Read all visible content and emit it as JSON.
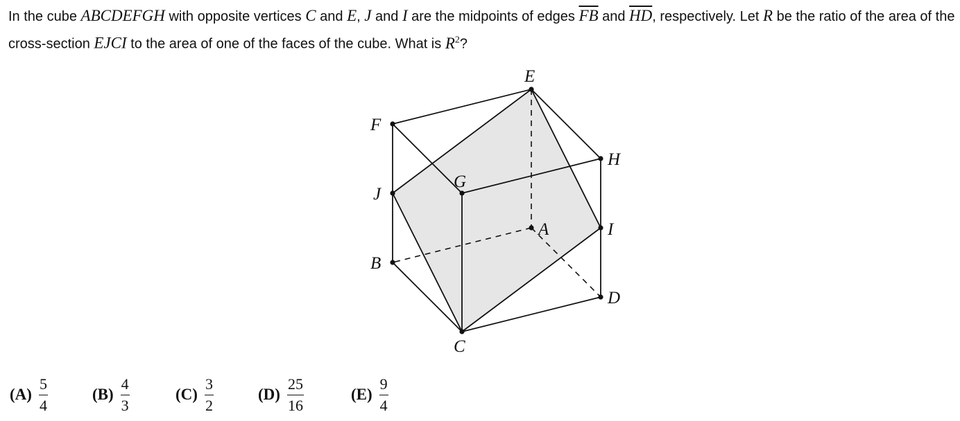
{
  "problem": {
    "t1": "In the cube ",
    "cube": "ABCDEFGH",
    "t2": " with opposite vertices ",
    "v1": "C",
    "t3": " and ",
    "v2": "E",
    "t4": ", ",
    "p1": "J",
    "t5": " and ",
    "p2": "I",
    "t6": " are the midpoints of edges ",
    "e1": "FB",
    "t7": " and ",
    "e2": "HD",
    "t8": ", respectively. Let ",
    "r1": "R",
    "t9": " be the ratio of the area of the cross-section ",
    "sec": "EJCI",
    "t10": " to the area of one of the faces of the cube. What is ",
    "r2": "R",
    "exp": "2",
    "t11": "?"
  },
  "figure": {
    "labels": {
      "E": "E",
      "F": "F",
      "H": "H",
      "G": "G",
      "J": "J",
      "A": "A",
      "I": "I",
      "B": "B",
      "D": "D",
      "C": "C"
    },
    "shade_color": "#e6e6e6",
    "line_color": "#111111"
  },
  "choices": [
    {
      "letter": "(A)",
      "num": "5",
      "den": "4"
    },
    {
      "letter": "(B)",
      "num": "4",
      "den": "3"
    },
    {
      "letter": "(C)",
      "num": "3",
      "den": "2"
    },
    {
      "letter": "(D)",
      "num": "25",
      "den": "16"
    },
    {
      "letter": "(E)",
      "num": "9",
      "den": "4"
    }
  ]
}
